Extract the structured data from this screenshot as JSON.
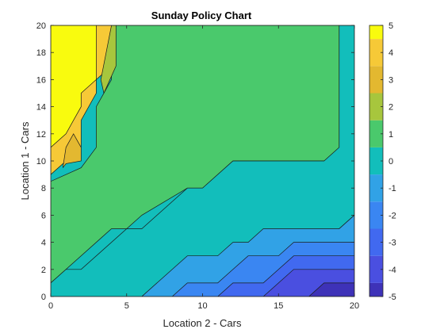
{
  "chart_data": {
    "type": "contour-filled",
    "title": "Sunday Policy Chart",
    "xlabel": "Location 2 - Cars",
    "ylabel": "Location 1 - Cars",
    "xlim": [
      0,
      20
    ],
    "ylim": [
      0,
      20
    ],
    "x_ticks": [
      0,
      5,
      10,
      15,
      20
    ],
    "y_ticks": [
      0,
      2,
      4,
      6,
      8,
      10,
      12,
      14,
      16,
      18,
      20
    ],
    "colorbar": {
      "limits": [
        -5,
        5
      ],
      "ticks": [
        5,
        4,
        3,
        2,
        1,
        0,
        -1,
        -2,
        -3,
        -4,
        -5
      ]
    },
    "levels": [
      {
        "value": 5,
        "color": "#f9fb0e",
        "region": [
          [
            0,
            12
          ],
          [
            0,
            20
          ],
          [
            3,
            20
          ],
          [
            3,
            16
          ],
          [
            2,
            15
          ],
          [
            2,
            14
          ],
          [
            1.5,
            13
          ],
          [
            1,
            12
          ],
          [
            0,
            11
          ]
        ]
      },
      {
        "value": 4,
        "color": "#f6c937",
        "region": [
          [
            0,
            9
          ],
          [
            0,
            20
          ],
          [
            4,
            20
          ],
          [
            4,
            17
          ],
          [
            3,
            16
          ],
          [
            3,
            15
          ],
          [
            2,
            13
          ],
          [
            2,
            12
          ],
          [
            2,
            11
          ],
          [
            1,
            10
          ],
          [
            0,
            9
          ]
        ]
      },
      {
        "value": 3,
        "color": "#e3b830",
        "region": [
          [
            0.8,
            9.5
          ],
          [
            1,
            11
          ],
          [
            1.5,
            12
          ],
          [
            2,
            11
          ],
          [
            2,
            10
          ],
          [
            1,
            9.8
          ]
        ]
      },
      {
        "value": 2,
        "color": "#a7c63d",
        "region": [
          [
            3.3,
            16
          ],
          [
            4,
            20
          ],
          [
            4.3,
            20
          ],
          [
            4.3,
            17
          ],
          [
            3.5,
            15
          ],
          [
            3.3,
            16
          ]
        ]
      },
      {
        "value": 1,
        "color": "#4ac96c",
        "region": [
          [
            0,
            1
          ],
          [
            0,
            8.5
          ],
          [
            2,
            9.5
          ],
          [
            3,
            11
          ],
          [
            3,
            14
          ],
          [
            4,
            16
          ],
          [
            4,
            20
          ],
          [
            19,
            20
          ],
          [
            19,
            10
          ],
          [
            18,
            10
          ],
          [
            12,
            10
          ],
          [
            10,
            8
          ],
          [
            9,
            8
          ],
          [
            6,
            6
          ],
          [
            5,
            5
          ],
          [
            4,
            5
          ],
          [
            1,
            2
          ],
          [
            0,
            1
          ]
        ]
      },
      {
        "value": 0,
        "color": "#12bebb",
        "region": [
          [
            0,
            0
          ],
          [
            0,
            1
          ],
          [
            1,
            2
          ],
          [
            2,
            2
          ],
          [
            5,
            5
          ],
          [
            6,
            5
          ],
          [
            9,
            8
          ],
          [
            10,
            8
          ],
          [
            12,
            10
          ],
          [
            18,
            10
          ],
          [
            19,
            11
          ],
          [
            19,
            20
          ],
          [
            20,
            20
          ],
          [
            20,
            6
          ],
          [
            19,
            5
          ],
          [
            17,
            4
          ],
          [
            15,
            4
          ],
          [
            14,
            3
          ],
          [
            12,
            3
          ],
          [
            11,
            2
          ],
          [
            10,
            2
          ],
          [
            7,
            1
          ],
          [
            6,
            0
          ]
        ]
      },
      {
        "value": -1,
        "color": "#31a2e6",
        "region": [
          [
            6,
            0
          ],
          [
            7,
            1
          ],
          [
            8,
            2
          ],
          [
            9,
            3
          ],
          [
            11,
            3
          ],
          [
            12,
            4
          ],
          [
            13,
            4
          ],
          [
            14,
            5
          ],
          [
            19,
            5
          ],
          [
            20,
            6
          ],
          [
            20,
            0
          ]
        ]
      },
      {
        "value": -2,
        "color": "#3a86f2",
        "region": [
          [
            8,
            0
          ],
          [
            9,
            1
          ],
          [
            11,
            1
          ],
          [
            12,
            2
          ],
          [
            13,
            3
          ],
          [
            15,
            3
          ],
          [
            16,
            4
          ],
          [
            20,
            4
          ],
          [
            20,
            0
          ]
        ]
      },
      {
        "value": -3,
        "color": "#4169f0",
        "region": [
          [
            11,
            0
          ],
          [
            12,
            1
          ],
          [
            14,
            1
          ],
          [
            15,
            2
          ],
          [
            16,
            3
          ],
          [
            20,
            3
          ],
          [
            20,
            0
          ]
        ]
      },
      {
        "value": -4,
        "color": "#4a4fe0",
        "region": [
          [
            14,
            0
          ],
          [
            15,
            1
          ],
          [
            16,
            2
          ],
          [
            20,
            2
          ],
          [
            20,
            0
          ]
        ]
      },
      {
        "value": -5,
        "color": "#3e32b8",
        "region": [
          [
            17,
            0
          ],
          [
            18,
            1
          ],
          [
            20,
            1
          ],
          [
            20,
            0
          ]
        ]
      }
    ]
  }
}
